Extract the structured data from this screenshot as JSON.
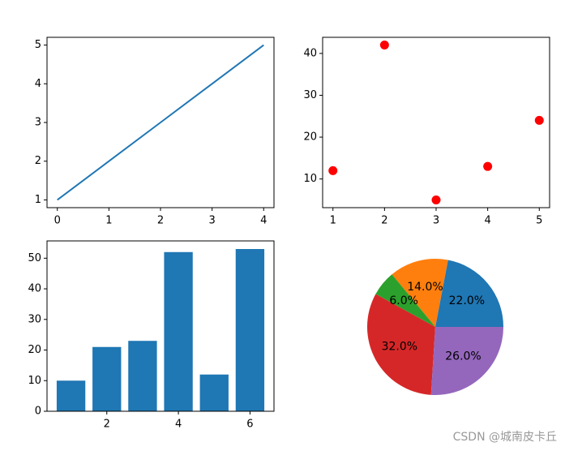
{
  "chart_data": [
    {
      "type": "line",
      "x": [
        0,
        1,
        2,
        3,
        4
      ],
      "y": [
        1,
        2,
        3,
        4,
        5
      ],
      "xlim": [
        -0.2,
        4.2
      ],
      "ylim": [
        0.8,
        5.2
      ],
      "xticks": [
        0,
        1,
        2,
        3,
        4
      ],
      "yticks": [
        1,
        2,
        3,
        4,
        5
      ],
      "color": "#1f77b4",
      "grid": false
    },
    {
      "type": "scatter",
      "x": [
        1,
        2,
        3,
        4,
        5
      ],
      "y": [
        12,
        42,
        5,
        13,
        24
      ],
      "xlim": [
        0.8,
        5.2
      ],
      "ylim": [
        3.15,
        43.85
      ],
      "xticks": [
        1,
        2,
        3,
        4,
        5
      ],
      "yticks": [
        10,
        20,
        30,
        40
      ],
      "color": "#ff0000",
      "grid": false
    },
    {
      "type": "bar",
      "x": [
        1,
        2,
        3,
        4,
        5,
        6
      ],
      "values": [
        10,
        21,
        23,
        52,
        12,
        53
      ],
      "xlim": [
        0.33,
        6.67
      ],
      "ylim": [
        0,
        55.65
      ],
      "xticks": [
        2,
        4,
        6
      ],
      "yticks": [
        0,
        10,
        20,
        30,
        40,
        50
      ],
      "color": "#1f77b4",
      "grid": false
    },
    {
      "type": "pie",
      "values": [
        22,
        14,
        6,
        32,
        26
      ],
      "labels": [
        "22.0%",
        "14.0%",
        "6.0%",
        "32.0%",
        "26.0%"
      ],
      "colors": [
        "#1f77b4",
        "#ff7f0e",
        "#2ca02c",
        "#d62728",
        "#9467bd"
      ],
      "start_angle_deg": 0,
      "direction": "counterclockwise"
    }
  ],
  "watermark": "CSDN @城南皮卡丘"
}
